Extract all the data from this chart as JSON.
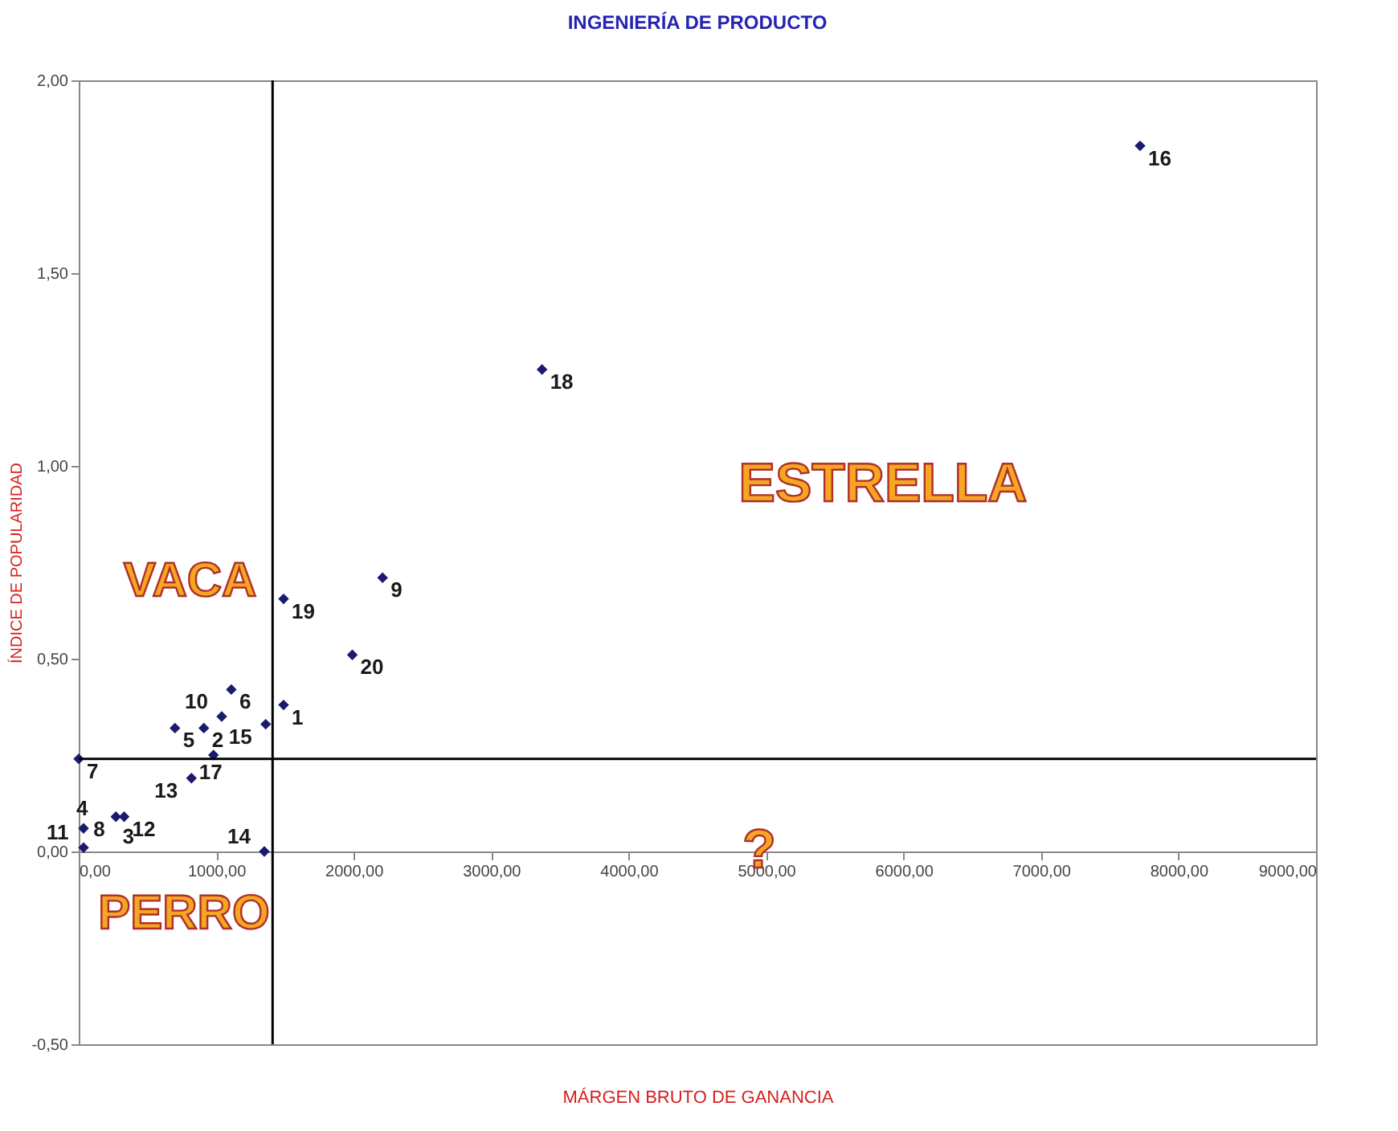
{
  "chart_data": {
    "type": "scatter",
    "title": "INGENIERÍA DE PRODUCTO",
    "xlabel": "MÁRGEN BRUTO DE GANANCIA",
    "ylabel": "ÍNDICE DE POPULARIDAD",
    "xlim": [
      0,
      9000
    ],
    "ylim": [
      -0.5,
      2
    ],
    "xticks": [
      {
        "value": 0,
        "label": "0,00"
      },
      {
        "value": 1000,
        "label": "1000,00"
      },
      {
        "value": 2000,
        "label": "2000,00"
      },
      {
        "value": 3000,
        "label": "3000,00"
      },
      {
        "value": 4000,
        "label": "4000,00"
      },
      {
        "value": 5000,
        "label": "5000,00"
      },
      {
        "value": 6000,
        "label": "6000,00"
      },
      {
        "value": 7000,
        "label": "7000,00"
      },
      {
        "value": 8000,
        "label": "8000,00"
      },
      {
        "value": 9000,
        "label": "9000,00"
      }
    ],
    "yticks": [
      {
        "value": -0.5,
        "label": "-0,50"
      },
      {
        "value": 0,
        "label": "0,00"
      },
      {
        "value": 0.5,
        "label": "0,50"
      },
      {
        "value": 1,
        "label": "1,00"
      },
      {
        "value": 1.5,
        "label": "1,50"
      },
      {
        "value": 2,
        "label": "2,00"
      }
    ],
    "marker": "diamond",
    "grid": false,
    "series": [
      {
        "color": "#1a1a6e",
        "x": [
          7720,
          3370,
          2210,
          1490,
          1990,
          1490,
          1360,
          1110,
          1040,
          700,
          910,
          980,
          820,
          270,
          330,
          35,
          0,
          1350,
          35
        ],
        "values": [
          1.83,
          1.25,
          0.71,
          0.655,
          0.51,
          0.38,
          0.33,
          0.42,
          0.35,
          0.32,
          0.32,
          0.25,
          0.19,
          0.09,
          0.09,
          0.01,
          0.24,
          0.0,
          0.06
        ]
      }
    ],
    "ref_lines": [
      {
        "axis": "x",
        "value": 1410,
        "color": "#000000"
      },
      {
        "axis": "y",
        "value": 0.24,
        "color": "#000000"
      }
    ],
    "annotations": [
      {
        "text": "16",
        "x": 7720,
        "y": 1.83
      },
      {
        "text": "18",
        "x": 3370,
        "y": 1.25
      },
      {
        "text": "9",
        "x": 2210,
        "y": 0.71
      },
      {
        "text": "19",
        "x": 1490,
        "y": 0.655
      },
      {
        "text": "20",
        "x": 1990,
        "y": 0.51
      },
      {
        "text": "1",
        "x": 1490,
        "y": 0.38
      },
      {
        "text": "15",
        "x": 1360,
        "y": 0.33
      },
      {
        "text": "6",
        "x": 1110,
        "y": 0.42
      },
      {
        "text": "10",
        "x": 1040,
        "y": 0.35
      },
      {
        "text": "5",
        "x": 700,
        "y": 0.32
      },
      {
        "text": "2",
        "x": 910,
        "y": 0.32
      },
      {
        "text": "17",
        "x": 980,
        "y": 0.25
      },
      {
        "text": "13",
        "x": 820,
        "y": 0.19
      },
      {
        "text": "8",
        "x": 270,
        "y": 0.09
      },
      {
        "text": "12",
        "x": 330,
        "y": 0.09
      },
      {
        "text": "11",
        "x": 35,
        "y": 0.01
      },
      {
        "text": "7",
        "x": 0,
        "y": 0.24
      },
      {
        "text": "14",
        "x": 1350,
        "y": 0.0
      },
      {
        "text": "4",
        "x": 35,
        "y": 0.06
      },
      "3",
      "VACA",
      "ESTRELLA",
      "?",
      "PERRO"
    ]
  }
}
